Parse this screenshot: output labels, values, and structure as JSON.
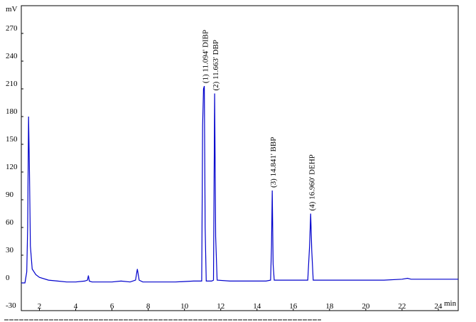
{
  "chart_data": {
    "type": "line",
    "y_label": "mV",
    "x_label": "min",
    "x": [
      1.0,
      1.2,
      1.3,
      1.35,
      1.4,
      1.45,
      1.5,
      1.6,
      1.8,
      2.0,
      2.5,
      3.0,
      3.5,
      4.0,
      4.5,
      4.65,
      4.7,
      4.75,
      4.9,
      5.5,
      6.0,
      6.5,
      7.0,
      7.3,
      7.4,
      7.5,
      7.7,
      8.5,
      9.5,
      10.5,
      10.95,
      11.0,
      11.05,
      11.094,
      11.14,
      11.2,
      11.5,
      11.6,
      11.663,
      11.72,
      11.8,
      12.5,
      13.5,
      14.5,
      14.75,
      14.8,
      14.841,
      14.89,
      14.95,
      15.1,
      16.0,
      16.8,
      16.9,
      16.96,
      17.02,
      17.1,
      17.3,
      18.0,
      19.0,
      20.0,
      21.0,
      22.0,
      22.3,
      22.5,
      23.0,
      24.0,
      25.1
    ],
    "values": [
      0,
      0,
      12,
      60,
      180,
      120,
      40,
      15,
      9,
      6,
      3,
      2,
      1,
      1,
      2,
      3,
      8,
      2,
      1,
      1,
      1,
      2,
      1,
      3,
      15,
      3,
      1,
      1,
      1,
      2,
      2,
      170,
      210,
      213,
      60,
      2,
      2,
      3,
      205,
      50,
      3,
      2,
      2,
      2,
      3,
      40,
      100,
      20,
      3,
      3,
      3,
      3,
      40,
      75,
      35,
      3,
      3,
      3,
      3,
      3,
      3,
      4,
      5,
      4,
      4,
      4,
      4
    ],
    "color": "#0000cc",
    "xlim": [
      1.0,
      25.1
    ],
    "ylim": [
      -30,
      300
    ],
    "xticks": [
      2,
      4,
      6,
      8,
      10,
      12,
      14,
      16,
      18,
      20,
      22,
      24
    ],
    "yticks": [
      -30,
      0,
      30,
      60,
      90,
      120,
      150,
      180,
      210,
      240,
      270
    ],
    "annotations": [
      {
        "text": "(1) 11.094' DIBP",
        "x": 11.094,
        "y": 213
      },
      {
        "text": "(2) 11.663' DBP",
        "x": 11.663,
        "y": 205
      },
      {
        "text": "(3) 14.841' BBP",
        "x": 14.841,
        "y": 100
      },
      {
        "text": "(4) 16.960' DEHP",
        "x": 16.96,
        "y": 75
      }
    ]
  }
}
